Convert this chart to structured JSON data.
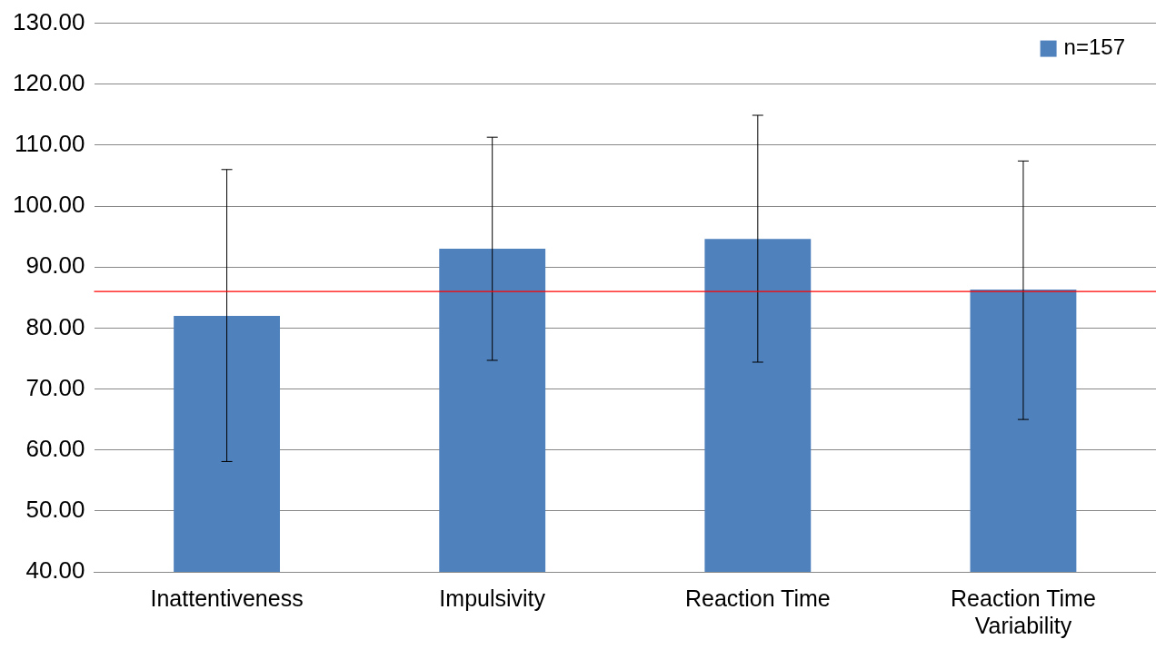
{
  "chart_data": {
    "type": "bar",
    "categories": [
      "Inattentiveness",
      "Impulsivity",
      "Reaction Time",
      "Reaction Time Variability"
    ],
    "series": [
      {
        "name": "n=157",
        "color": "#4f81bd",
        "values": [
          82.0,
          93.0,
          94.6,
          86.3
        ],
        "errors": [
          [
            58.1,
            106.0
          ],
          [
            74.7,
            111.3
          ],
          [
            74.4,
            114.9
          ],
          [
            65.0,
            107.4
          ]
        ]
      }
    ],
    "ylim": [
      40,
      130
    ],
    "yticks": [
      {
        "value": 40,
        "label": "40.00"
      },
      {
        "value": 50,
        "label": "50.00"
      },
      {
        "value": 60,
        "label": "60.00"
      },
      {
        "value": 70,
        "label": "70.00"
      },
      {
        "value": 80,
        "label": "80.00"
      },
      {
        "value": 90,
        "label": "90.00"
      },
      {
        "value": 100,
        "label": "100.00"
      },
      {
        "value": 110,
        "label": "110.00"
      },
      {
        "value": 120,
        "label": "120.00"
      },
      {
        "value": 130,
        "label": "130.00"
      }
    ],
    "ref_lines": [
      {
        "axis": "y",
        "value": 86,
        "color": "#ff0000"
      }
    ],
    "grid": "y",
    "legend": "top right"
  }
}
